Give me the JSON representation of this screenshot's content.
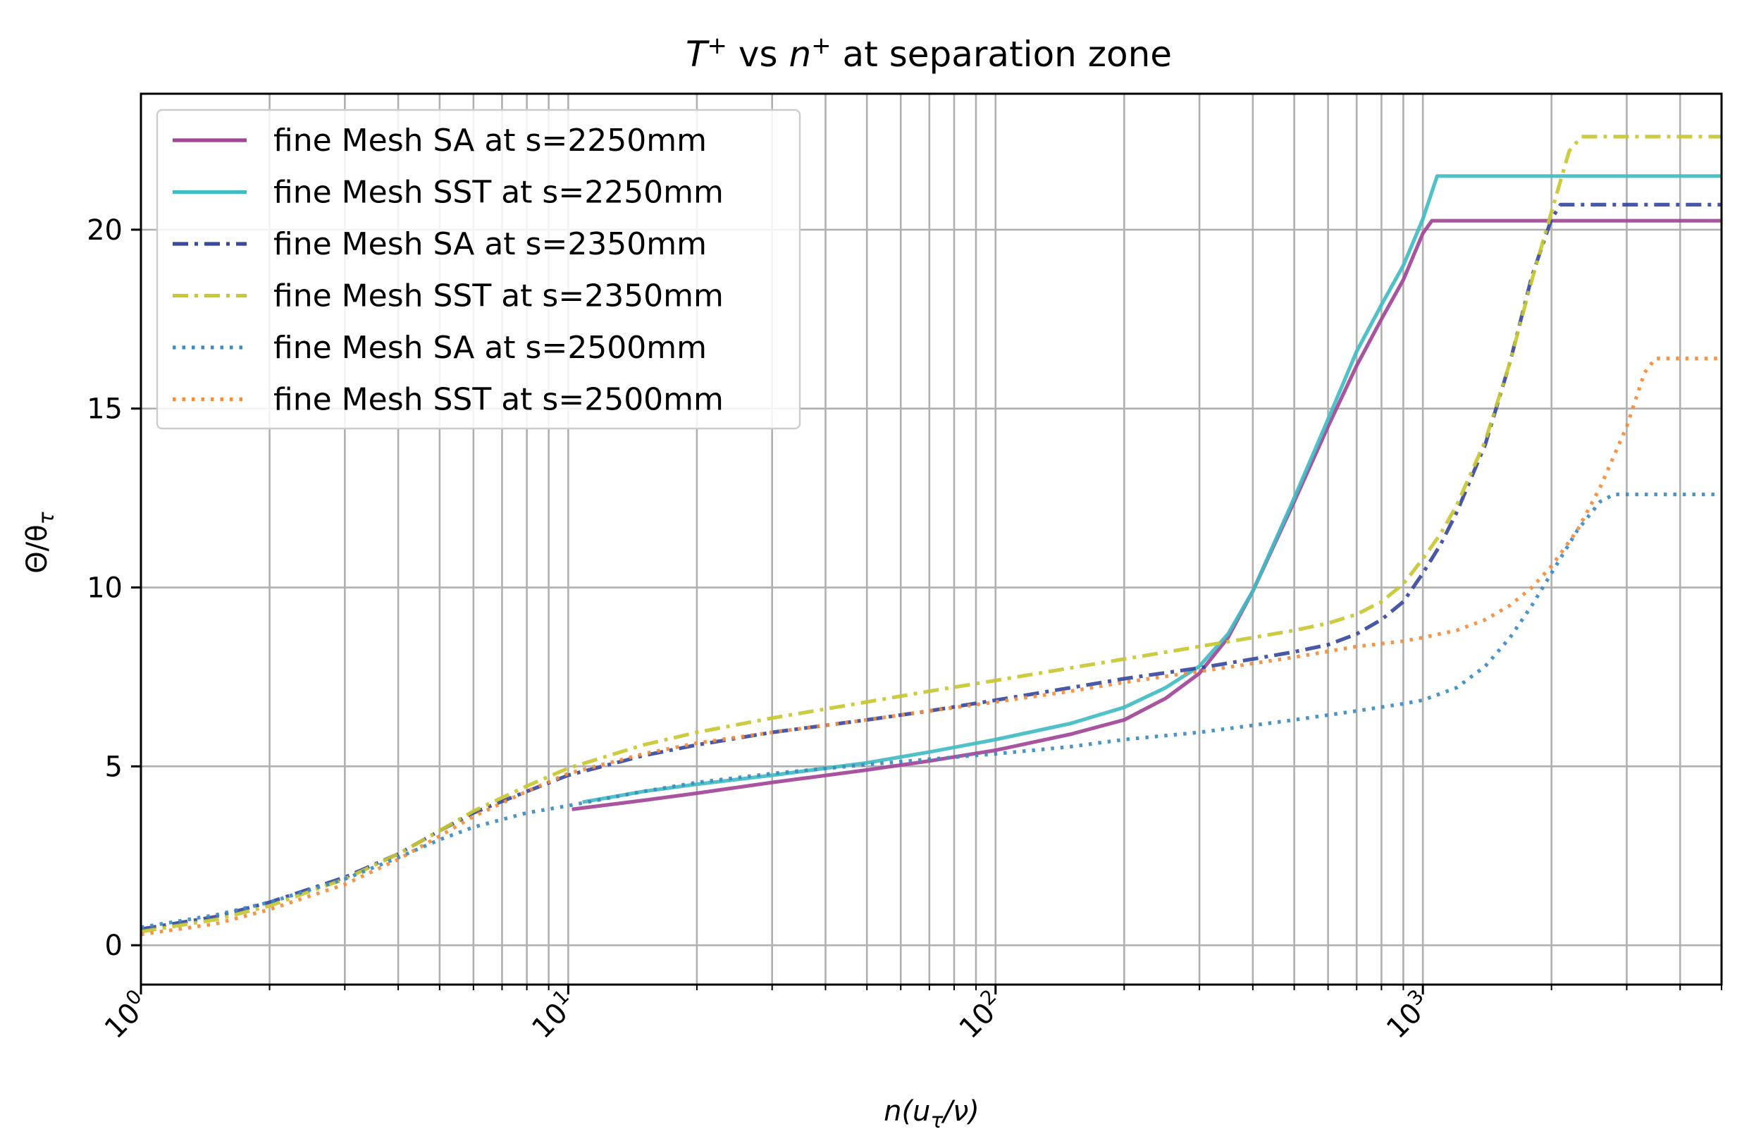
{
  "chart_data": {
    "type": "line",
    "title_parts": [
      "T",
      "+",
      " vs ",
      "n",
      "+",
      " at separation zone"
    ],
    "xlabel_parts": [
      "n(u",
      "τ",
      "/ν)"
    ],
    "ylabel_parts": [
      "Θ/θ",
      "τ"
    ],
    "xscale": "log",
    "xlim": [
      1,
      5000
    ],
    "ylim": [
      -1.1,
      23.8
    ],
    "grid": true,
    "legend_loc": "upper left",
    "x_ticks": [
      {
        "value": 1,
        "base": "10",
        "exp": "0"
      },
      {
        "value": 10,
        "base": "10",
        "exp": "1"
      },
      {
        "value": 100,
        "base": "10",
        "exp": "2"
      },
      {
        "value": 1000,
        "base": "10",
        "exp": "3"
      }
    ],
    "y_ticks": [
      {
        "value": 0,
        "label": "0"
      },
      {
        "value": 5,
        "label": "5"
      },
      {
        "value": 10,
        "label": "10"
      },
      {
        "value": 15,
        "label": "15"
      },
      {
        "value": 20,
        "label": "20"
      }
    ],
    "series": [
      {
        "name": "fine Mesh SA at s=2250mm",
        "color": "#a24597",
        "style": "solid",
        "points": [
          [
            10.2,
            3.8
          ],
          [
            15,
            4.05
          ],
          [
            20,
            4.25
          ],
          [
            30,
            4.55
          ],
          [
            50,
            4.9
          ],
          [
            70,
            5.15
          ],
          [
            100,
            5.45
          ],
          [
            150,
            5.9
          ],
          [
            200,
            6.3
          ],
          [
            250,
            6.9
          ],
          [
            300,
            7.6
          ],
          [
            350,
            8.6
          ],
          [
            400,
            9.9
          ],
          [
            500,
            12.4
          ],
          [
            600,
            14.5
          ],
          [
            700,
            16.2
          ],
          [
            800,
            17.5
          ],
          [
            900,
            18.6
          ],
          [
            1000,
            19.9
          ],
          [
            1050,
            20.25
          ],
          [
            1100,
            20.25
          ],
          [
            1500,
            20.25
          ],
          [
            3000,
            20.25
          ],
          [
            5000,
            20.25
          ]
        ]
      },
      {
        "name": "fine Mesh SST at s=2250mm",
        "color": "#42bcc3",
        "style": "solid",
        "points": [
          [
            10.8,
            4.0
          ],
          [
            15,
            4.3
          ],
          [
            20,
            4.5
          ],
          [
            30,
            4.75
          ],
          [
            50,
            5.1
          ],
          [
            70,
            5.4
          ],
          [
            100,
            5.75
          ],
          [
            150,
            6.2
          ],
          [
            200,
            6.65
          ],
          [
            250,
            7.2
          ],
          [
            300,
            7.8
          ],
          [
            350,
            8.7
          ],
          [
            400,
            9.9
          ],
          [
            500,
            12.5
          ],
          [
            600,
            14.7
          ],
          [
            700,
            16.6
          ],
          [
            800,
            17.9
          ],
          [
            900,
            19.0
          ],
          [
            1000,
            20.3
          ],
          [
            1080,
            21.5
          ],
          [
            1150,
            21.5
          ],
          [
            1300,
            21.5
          ],
          [
            3000,
            21.5
          ],
          [
            5000,
            21.5
          ]
        ]
      },
      {
        "name": "fine Mesh SA at s=2350mm",
        "color": "#3949a0",
        "style": "dashdot",
        "points": [
          [
            1,
            0.45
          ],
          [
            1.5,
            0.8
          ],
          [
            2,
            1.2
          ],
          [
            3,
            1.9
          ],
          [
            4,
            2.55
          ],
          [
            5,
            3.2
          ],
          [
            6,
            3.7
          ],
          [
            8,
            4.3
          ],
          [
            10,
            4.75
          ],
          [
            15,
            5.3
          ],
          [
            20,
            5.6
          ],
          [
            30,
            5.95
          ],
          [
            50,
            6.3
          ],
          [
            70,
            6.55
          ],
          [
            100,
            6.85
          ],
          [
            150,
            7.2
          ],
          [
            200,
            7.45
          ],
          [
            300,
            7.75
          ],
          [
            400,
            8.0
          ],
          [
            500,
            8.2
          ],
          [
            600,
            8.4
          ],
          [
            700,
            8.7
          ],
          [
            800,
            9.1
          ],
          [
            900,
            9.6
          ],
          [
            1000,
            10.4
          ],
          [
            1100,
            11.2
          ],
          [
            1200,
            12.1
          ],
          [
            1400,
            14.0
          ],
          [
            1600,
            16.3
          ],
          [
            1800,
            18.7
          ],
          [
            2000,
            20.3
          ],
          [
            2100,
            20.7
          ],
          [
            2300,
            20.7
          ],
          [
            3000,
            20.7
          ],
          [
            5000,
            20.7
          ]
        ]
      },
      {
        "name": "fine Mesh SST at s=2350mm",
        "color": "#c8c832",
        "style": "dashdot",
        "points": [
          [
            1,
            0.38
          ],
          [
            1.5,
            0.72
          ],
          [
            2,
            1.1
          ],
          [
            3,
            1.85
          ],
          [
            4,
            2.55
          ],
          [
            5,
            3.2
          ],
          [
            6,
            3.75
          ],
          [
            8,
            4.45
          ],
          [
            10,
            4.95
          ],
          [
            15,
            5.6
          ],
          [
            20,
            5.95
          ],
          [
            30,
            6.35
          ],
          [
            50,
            6.8
          ],
          [
            70,
            7.1
          ],
          [
            100,
            7.4
          ],
          [
            150,
            7.75
          ],
          [
            200,
            8.0
          ],
          [
            300,
            8.35
          ],
          [
            400,
            8.6
          ],
          [
            500,
            8.8
          ],
          [
            600,
            9.0
          ],
          [
            700,
            9.25
          ],
          [
            800,
            9.6
          ],
          [
            900,
            10.1
          ],
          [
            1000,
            10.8
          ],
          [
            1100,
            11.5
          ],
          [
            1200,
            12.3
          ],
          [
            1400,
            14.1
          ],
          [
            1600,
            16.3
          ],
          [
            1800,
            18.6
          ],
          [
            2000,
            20.5
          ],
          [
            2200,
            22.2
          ],
          [
            2350,
            22.6
          ],
          [
            2600,
            22.6
          ],
          [
            5000,
            22.6
          ]
        ]
      },
      {
        "name": "fine Mesh SA at s=2500mm",
        "color": "#3d8bc1",
        "style": "dotted",
        "points": [
          [
            1,
            0.5
          ],
          [
            1.5,
            0.85
          ],
          [
            2,
            1.2
          ],
          [
            3,
            1.85
          ],
          [
            4,
            2.45
          ],
          [
            5,
            2.95
          ],
          [
            6,
            3.3
          ],
          [
            8,
            3.7
          ],
          [
            10,
            3.9
          ],
          [
            15,
            4.3
          ],
          [
            20,
            4.55
          ],
          [
            30,
            4.8
          ],
          [
            50,
            5.05
          ],
          [
            70,
            5.2
          ],
          [
            100,
            5.35
          ],
          [
            150,
            5.55
          ],
          [
            200,
            5.75
          ],
          [
            300,
            5.95
          ],
          [
            500,
            6.3
          ],
          [
            700,
            6.55
          ],
          [
            900,
            6.75
          ],
          [
            1000,
            6.85
          ],
          [
            1200,
            7.2
          ],
          [
            1400,
            7.8
          ],
          [
            1600,
            8.6
          ],
          [
            1800,
            9.5
          ],
          [
            2000,
            10.4
          ],
          [
            2300,
            11.6
          ],
          [
            2600,
            12.4
          ],
          [
            2800,
            12.6
          ],
          [
            3000,
            12.6
          ],
          [
            5000,
            12.6
          ]
        ]
      },
      {
        "name": "fine Mesh SST at s=2500mm",
        "color": "#f48c3a",
        "style": "dotted",
        "points": [
          [
            1,
            0.3
          ],
          [
            1.5,
            0.6
          ],
          [
            2,
            1.0
          ],
          [
            3,
            1.7
          ],
          [
            4,
            2.4
          ],
          [
            5,
            3.05
          ],
          [
            6,
            3.6
          ],
          [
            8,
            4.3
          ],
          [
            10,
            4.8
          ],
          [
            15,
            5.35
          ],
          [
            20,
            5.65
          ],
          [
            30,
            5.95
          ],
          [
            50,
            6.3
          ],
          [
            70,
            6.55
          ],
          [
            100,
            6.8
          ],
          [
            150,
            7.1
          ],
          [
            200,
            7.35
          ],
          [
            300,
            7.65
          ],
          [
            500,
            8.05
          ],
          [
            700,
            8.35
          ],
          [
            900,
            8.5
          ],
          [
            1000,
            8.6
          ],
          [
            1200,
            8.8
          ],
          [
            1400,
            9.1
          ],
          [
            1600,
            9.5
          ],
          [
            1800,
            10.0
          ],
          [
            2000,
            10.6
          ],
          [
            2300,
            11.6
          ],
          [
            2600,
            12.8
          ],
          [
            3000,
            14.5
          ],
          [
            3300,
            16.0
          ],
          [
            3500,
            16.4
          ],
          [
            4000,
            16.4
          ],
          [
            5000,
            16.4
          ]
        ]
      }
    ]
  }
}
